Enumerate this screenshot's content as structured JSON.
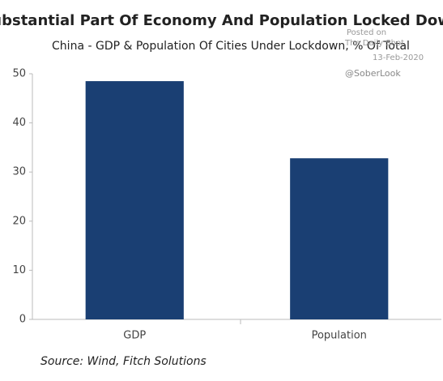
{
  "chart_data": {
    "type": "bar",
    "title": "Substantial Part Of Economy And Population Locked Down",
    "subtitle": "China - GDP & Population Of Cities Under Lockdown, % Of Total",
    "source": "Source: Wind, Fitch Solutions",
    "watermark": [
      "Posted on",
      "The Daily Shot",
      "13-Feb-2020",
      "@SoberLook"
    ],
    "categories": [
      "GDP",
      "Population"
    ],
    "values": [
      48.5,
      32.8
    ],
    "color": "#1a3f73",
    "ylim": [
      0,
      50
    ],
    "yticks": [
      0,
      10,
      20,
      30,
      40,
      50
    ],
    "grid": false
  }
}
